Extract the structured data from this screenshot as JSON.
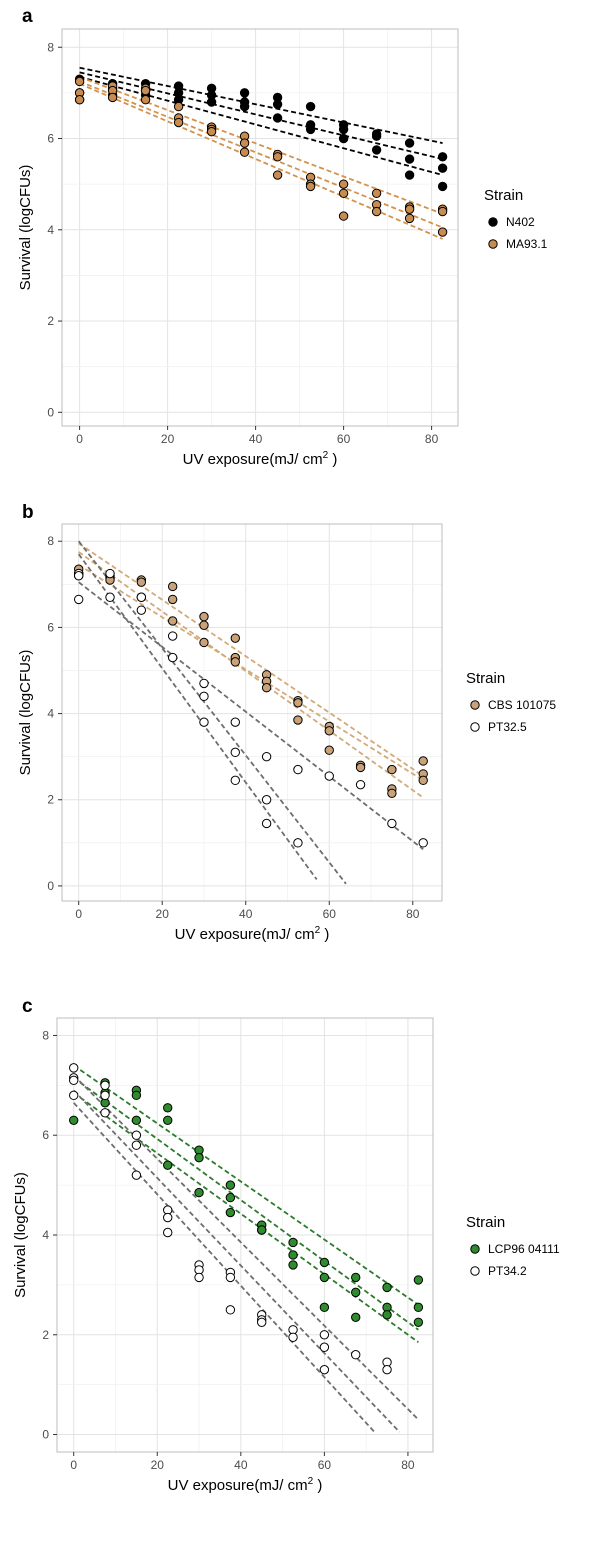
{
  "chart_data": [
    {
      "panel_label": "a",
      "type": "scatter",
      "xlabel": "UV exposure(mJ/ cm",
      "xlabel_sup": "2",
      "xlabel_suffix": " )",
      "ylabel": "Survival (logCFUs)",
      "xlim": [
        -4,
        86
      ],
      "ylim": [
        -0.3,
        8.4
      ],
      "xticks": [
        0,
        20,
        40,
        60,
        80
      ],
      "yticks": [
        0,
        2,
        4,
        6,
        8
      ],
      "grid": true,
      "legend_title": "Strain",
      "legend_position": "right",
      "series": [
        {
          "name": "N402",
          "color": "#000000",
          "fill": "#000000",
          "line_color": "#000000",
          "points": [
            [
              0,
              7.0
            ],
            [
              0,
              7.3
            ],
            [
              0,
              6.85
            ],
            [
              7.5,
              7.2
            ],
            [
              7.5,
              7.1
            ],
            [
              7.5,
              6.95
            ],
            [
              15,
              7.2
            ],
            [
              15,
              7.05
            ],
            [
              15,
              6.95
            ],
            [
              22.5,
              7.15
            ],
            [
              22.5,
              7.0
            ],
            [
              22.5,
              6.85
            ],
            [
              30,
              7.1
            ],
            [
              30,
              6.95
            ],
            [
              30,
              6.8
            ],
            [
              37.5,
              7.0
            ],
            [
              37.5,
              6.8
            ],
            [
              37.5,
              6.7
            ],
            [
              45,
              6.9
            ],
            [
              45,
              6.75
            ],
            [
              45,
              6.45
            ],
            [
              52.5,
              6.7
            ],
            [
              52.5,
              6.3
            ],
            [
              52.5,
              6.2
            ],
            [
              60,
              6.3
            ],
            [
              60,
              6.2
            ],
            [
              60,
              6.0
            ],
            [
              67.5,
              6.1
            ],
            [
              67.5,
              6.05
            ],
            [
              67.5,
              5.75
            ],
            [
              75,
              5.9
            ],
            [
              75,
              5.55
            ],
            [
              75,
              5.2
            ],
            [
              82.5,
              5.6
            ],
            [
              82.5,
              5.35
            ],
            [
              82.5,
              4.95
            ]
          ],
          "fit_lines": [
            [
              [
                0,
                7.55
              ],
              [
                82.5,
                5.9
              ]
            ],
            [
              [
                0,
                7.45
              ],
              [
                82.5,
                5.55
              ]
            ],
            [
              [
                0,
                7.35
              ],
              [
                82.5,
                5.2
              ]
            ]
          ]
        },
        {
          "name": "MA93.1",
          "color": "#000000",
          "fill": "#c98c50",
          "line_color": "#d4914b",
          "points": [
            [
              0,
              7.25
            ],
            [
              0,
              7.0
            ],
            [
              0,
              6.85
            ],
            [
              7.5,
              7.15
            ],
            [
              7.5,
              7.05
            ],
            [
              7.5,
              6.9
            ],
            [
              15,
              7.1
            ],
            [
              15,
              7.05
            ],
            [
              15,
              6.85
            ],
            [
              22.5,
              6.7
            ],
            [
              22.5,
              6.45
            ],
            [
              22.5,
              6.35
            ],
            [
              30,
              6.25
            ],
            [
              30,
              6.2
            ],
            [
              30,
              6.15
            ],
            [
              37.5,
              6.05
            ],
            [
              37.5,
              5.9
            ],
            [
              37.5,
              5.7
            ],
            [
              45,
              5.65
            ],
            [
              45,
              5.6
            ],
            [
              45,
              5.2
            ],
            [
              52.5,
              5.15
            ],
            [
              52.5,
              5.0
            ],
            [
              52.5,
              4.95
            ],
            [
              60,
              5.0
            ],
            [
              60,
              4.8
            ],
            [
              60,
              4.3
            ],
            [
              67.5,
              4.8
            ],
            [
              67.5,
              4.55
            ],
            [
              67.5,
              4.4
            ],
            [
              75,
              4.5
            ],
            [
              75,
              4.45
            ],
            [
              75,
              4.25
            ],
            [
              82.5,
              4.45
            ],
            [
              82.5,
              4.4
            ],
            [
              82.5,
              3.95
            ]
          ],
          "fit_lines": [
            [
              [
                0,
                7.35
              ],
              [
                82.5,
                4.35
              ]
            ],
            [
              [
                0,
                7.25
              ],
              [
                82.5,
                4.05
              ]
            ],
            [
              [
                0,
                7.2
              ],
              [
                82.5,
                3.8
              ]
            ]
          ]
        }
      ]
    },
    {
      "panel_label": "b",
      "type": "scatter",
      "xlabel": "UV exposure(mJ/ cm",
      "xlabel_sup": "2",
      "xlabel_suffix": " )",
      "ylabel": "Survival (logCFUs)",
      "xlim": [
        -4,
        87
      ],
      "ylim": [
        -0.35,
        8.4
      ],
      "xticks": [
        0,
        20,
        40,
        60,
        80
      ],
      "yticks": [
        0,
        2,
        4,
        6,
        8
      ],
      "grid": true,
      "legend_title": "Strain",
      "legend_position": "right",
      "series": [
        {
          "name": "CBS 101075",
          "color": "#000000",
          "fill": "#c9a27a",
          "line_color": "#d2aa78",
          "points": [
            [
              0,
              7.35
            ],
            [
              0,
              7.25
            ],
            [
              0,
              7.2
            ],
            [
              7.5,
              7.2
            ],
            [
              7.5,
              7.15
            ],
            [
              7.5,
              7.1
            ],
            [
              15,
              7.1
            ],
            [
              15,
              7.05
            ],
            [
              15,
              6.7
            ],
            [
              22.5,
              6.95
            ],
            [
              22.5,
              6.65
            ],
            [
              22.5,
              6.15
            ],
            [
              30,
              6.25
            ],
            [
              30,
              6.05
            ],
            [
              30,
              5.65
            ],
            [
              37.5,
              5.75
            ],
            [
              37.5,
              5.3
            ],
            [
              37.5,
              5.2
            ],
            [
              45,
              4.9
            ],
            [
              45,
              4.75
            ],
            [
              45,
              4.6
            ],
            [
              52.5,
              4.3
            ],
            [
              52.5,
              4.25
            ],
            [
              52.5,
              3.85
            ],
            [
              60,
              3.7
            ],
            [
              60,
              3.6
            ],
            [
              60,
              3.15
            ],
            [
              67.5,
              2.8
            ],
            [
              67.5,
              2.75
            ],
            [
              75,
              2.7
            ],
            [
              75,
              2.25
            ],
            [
              75,
              2.15
            ],
            [
              82.5,
              2.9
            ],
            [
              82.5,
              2.6
            ],
            [
              82.5,
              2.45
            ]
          ],
          "fit_lines": [
            [
              [
                0,
                7.95
              ],
              [
                82.5,
                2.55
              ]
            ],
            [
              [
                0,
                7.75
              ],
              [
                82.5,
                2.05
              ]
            ],
            [
              [
                0,
                7.45
              ],
              [
                82.5,
                2.45
              ]
            ]
          ]
        },
        {
          "name": "PT32.5",
          "color": "#000000",
          "fill": "#ffffff",
          "line_color": "#6e6e6e",
          "points": [
            [
              0,
              7.25
            ],
            [
              0,
              7.2
            ],
            [
              0,
              6.65
            ],
            [
              7.5,
              7.25
            ],
            [
              7.5,
              6.7
            ],
            [
              15,
              6.7
            ],
            [
              15,
              6.4
            ],
            [
              22.5,
              5.8
            ],
            [
              22.5,
              5.3
            ],
            [
              30,
              4.7
            ],
            [
              30,
              4.4
            ],
            [
              30,
              3.8
            ],
            [
              37.5,
              3.8
            ],
            [
              37.5,
              3.1
            ],
            [
              37.5,
              2.45
            ],
            [
              45,
              3.0
            ],
            [
              45,
              2.0
            ],
            [
              45,
              1.45
            ],
            [
              52.5,
              2.7
            ],
            [
              52.5,
              1.0
            ],
            [
              60,
              2.55
            ],
            [
              67.5,
              2.35
            ],
            [
              75,
              1.45
            ],
            [
              82.5,
              1.0
            ]
          ],
          "fit_lines": [
            [
              [
                0,
                8.0
              ],
              [
                64,
                0.05
              ]
            ],
            [
              [
                0,
                7.7
              ],
              [
                57,
                0.15
              ]
            ],
            [
              [
                0,
                7.05
              ],
              [
                82.5,
                0.85
              ]
            ]
          ]
        }
      ]
    },
    {
      "panel_label": "c",
      "type": "scatter",
      "xlabel": "UV exposure(mJ/ cm",
      "xlabel_sup": "2",
      "xlabel_suffix": " )",
      "ylabel": "Survival (logCFUs)",
      "xlim": [
        -4,
        86
      ],
      "ylim": [
        -0.35,
        8.35
      ],
      "xticks": [
        0,
        20,
        40,
        60,
        80
      ],
      "yticks": [
        0,
        2,
        4,
        6,
        8
      ],
      "grid": true,
      "legend_title": "Strain",
      "legend_position": "right",
      "series": [
        {
          "name": "LCP96 04111",
          "color": "#000000",
          "fill": "#2e8b2e",
          "line_color": "#2d7a2d",
          "points": [
            [
              0,
              6.3
            ],
            [
              7.5,
              7.05
            ],
            [
              7.5,
              6.85
            ],
            [
              7.5,
              6.65
            ],
            [
              15,
              6.9
            ],
            [
              15,
              6.8
            ],
            [
              15,
              6.3
            ],
            [
              22.5,
              6.55
            ],
            [
              22.5,
              6.3
            ],
            [
              22.5,
              5.4
            ],
            [
              30,
              5.7
            ],
            [
              30,
              5.55
            ],
            [
              30,
              4.85
            ],
            [
              37.5,
              5.0
            ],
            [
              37.5,
              4.75
            ],
            [
              37.5,
              4.45
            ],
            [
              45,
              4.2
            ],
            [
              45,
              4.1
            ],
            [
              45,
              4.1
            ],
            [
              52.5,
              3.85
            ],
            [
              52.5,
              3.6
            ],
            [
              52.5,
              3.4
            ],
            [
              60,
              3.45
            ],
            [
              60,
              3.15
            ],
            [
              60,
              2.55
            ],
            [
              67.5,
              3.15
            ],
            [
              67.5,
              2.85
            ],
            [
              67.5,
              2.35
            ],
            [
              75,
              2.95
            ],
            [
              75,
              2.55
            ],
            [
              75,
              2.4
            ],
            [
              82.5,
              3.1
            ],
            [
              82.5,
              2.55
            ],
            [
              82.5,
              2.25
            ]
          ],
          "fit_lines": [
            [
              [
                0,
                7.4
              ],
              [
                82.5,
                2.6
              ]
            ],
            [
              [
                0,
                7.15
              ],
              [
                82.5,
                2.1
              ]
            ],
            [
              [
                0,
                6.85
              ],
              [
                82.5,
                1.85
              ]
            ]
          ]
        },
        {
          "name": "PT34.2",
          "color": "#000000",
          "fill": "#ffffff",
          "line_color": "#6e6e6e",
          "points": [
            [
              0,
              7.35
            ],
            [
              0,
              7.15
            ],
            [
              0,
              7.1
            ],
            [
              0,
              6.8
            ],
            [
              7.5,
              7.0
            ],
            [
              7.5,
              6.8
            ],
            [
              7.5,
              6.45
            ],
            [
              15,
              6.0
            ],
            [
              15,
              5.8
            ],
            [
              15,
              5.2
            ],
            [
              22.5,
              4.5
            ],
            [
              22.5,
              4.35
            ],
            [
              22.5,
              4.05
            ],
            [
              30,
              3.4
            ],
            [
              30,
              3.3
            ],
            [
              30,
              3.15
            ],
            [
              37.5,
              3.25
            ],
            [
              37.5,
              3.15
            ],
            [
              37.5,
              2.5
            ],
            [
              45,
              2.4
            ],
            [
              45,
              2.3
            ],
            [
              45,
              2.25
            ],
            [
              52.5,
              2.1
            ],
            [
              52.5,
              1.95
            ],
            [
              60,
              2.0
            ],
            [
              60,
              1.75
            ],
            [
              60,
              1.3
            ],
            [
              67.5,
              1.6
            ],
            [
              75,
              1.45
            ],
            [
              75,
              1.3
            ]
          ],
          "fit_lines": [
            [
              [
                0,
                7.2
              ],
              [
                82.5,
                0.3
              ]
            ],
            [
              [
                0,
                6.9
              ],
              [
                78,
                0.05
              ]
            ],
            [
              [
                0,
                6.65
              ],
              [
                72,
                0.05
              ]
            ]
          ]
        }
      ]
    }
  ]
}
